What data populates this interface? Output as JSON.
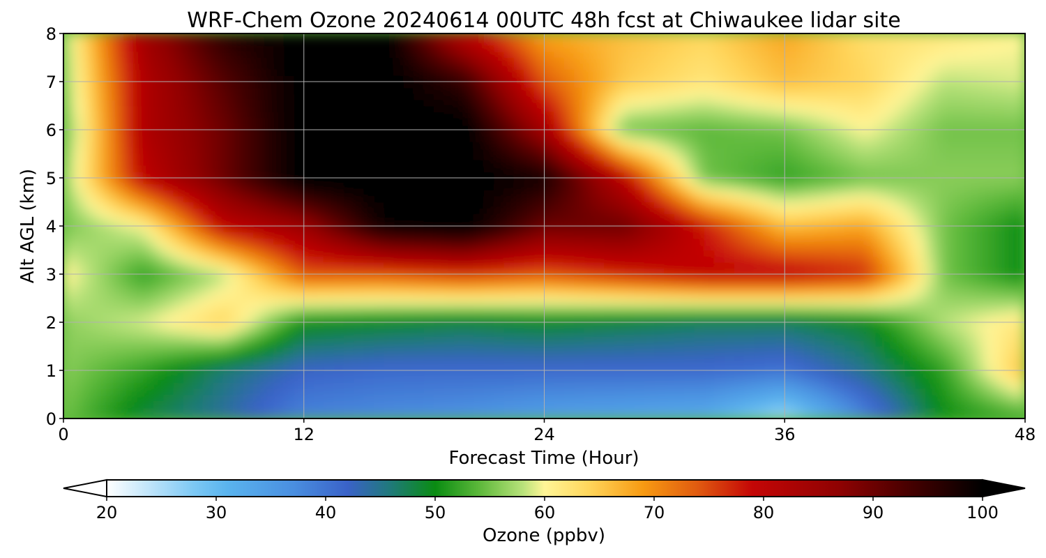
{
  "chart_data": {
    "type": "heatmap",
    "title": "WRF-Chem Ozone  20240614 00UTC 48h fcst at Chiwaukee lidar site",
    "xlabel": "Forecast Time (Hour)",
    "ylabel": "Alt AGL (km)",
    "xlim": [
      0,
      48
    ],
    "ylim": [
      0,
      8
    ],
    "x_ticks": [
      "0",
      "12",
      "24",
      "36",
      "48"
    ],
    "y_ticks": [
      "0",
      "1",
      "2",
      "3",
      "4",
      "5",
      "6",
      "7",
      "8"
    ],
    "grid": true,
    "colorbar": {
      "label": "Ozone  (ppbv)",
      "range": [
        20,
        100
      ],
      "ticks": [
        "20",
        "30",
        "40",
        "50",
        "60",
        "70",
        "80",
        "90",
        "100"
      ],
      "extend": "both",
      "anchors": [
        {
          "value": 20,
          "color": "#ffffff"
        },
        {
          "value": 28,
          "color": "#7cc8f4"
        },
        {
          "value": 31,
          "color": "#5ab4ee"
        },
        {
          "value": 37,
          "color": "#4a8fe0"
        },
        {
          "value": 42,
          "color": "#3a62c8"
        },
        {
          "value": 46,
          "color": "#1f7a78"
        },
        {
          "value": 50,
          "color": "#0a8c12"
        },
        {
          "value": 54,
          "color": "#5cb83a"
        },
        {
          "value": 58,
          "color": "#b8e27a"
        },
        {
          "value": 60,
          "color": "#fff597"
        },
        {
          "value": 64,
          "color": "#ffd65c"
        },
        {
          "value": 69,
          "color": "#f79a12"
        },
        {
          "value": 74,
          "color": "#e05a10"
        },
        {
          "value": 79,
          "color": "#c40606"
        },
        {
          "value": 87,
          "color": "#8e0202"
        },
        {
          "value": 93,
          "color": "#4a0000"
        },
        {
          "value": 100,
          "color": "#000000"
        }
      ]
    },
    "heatmap_rows_note": "z values (ppbv) at altitude levels 0..8 km (rows) and forecast hours 0..48 every 4 h (columns)",
    "altitudes": [
      0,
      1,
      2,
      3,
      4,
      5,
      6,
      7,
      8
    ],
    "hours": [
      0,
      4,
      8,
      12,
      16,
      20,
      24,
      28,
      32,
      36,
      40,
      44,
      48
    ],
    "z": [
      [
        55,
        48,
        44,
        38,
        37,
        36,
        34,
        33,
        32,
        25,
        38,
        50,
        52
      ],
      [
        56,
        52,
        46,
        42,
        41,
        41,
        41,
        41,
        41,
        40,
        45,
        52,
        66
      ],
      [
        56,
        59,
        64,
        50,
        49,
        48,
        49,
        48,
        47,
        47,
        49,
        58,
        62
      ],
      [
        61,
        52,
        58,
        74,
        74,
        76,
        74,
        77,
        80,
        80,
        77,
        55,
        50
      ],
      [
        55,
        60,
        80,
        85,
        99,
        101,
        90,
        90,
        78,
        66,
        68,
        55,
        50
      ],
      [
        56,
        80,
        90,
        101,
        101,
        101,
        98,
        80,
        55,
        52,
        55,
        56,
        56
      ],
      [
        54,
        82,
        90,
        101,
        101,
        101,
        84,
        55,
        54,
        55,
        60,
        55,
        55
      ],
      [
        56,
        82,
        92,
        101,
        101,
        95,
        74,
        65,
        62,
        66,
        64,
        58,
        59
      ],
      [
        57,
        84,
        96,
        101,
        101,
        80,
        68,
        66,
        64,
        68,
        63,
        62,
        60
      ]
    ]
  }
}
